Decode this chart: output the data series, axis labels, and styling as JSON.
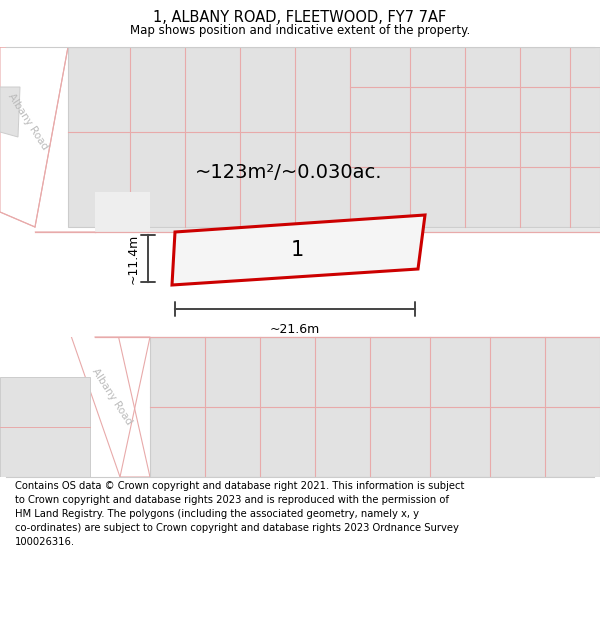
{
  "title": "1, ALBANY ROAD, FLEETWOOD, FY7 7AF",
  "subtitle": "Map shows position and indicative extent of the property.",
  "footer": "Contains OS data © Crown copyright and database right 2021. This information is subject\nto Crown copyright and database rights 2023 and is reproduced with the permission of\nHM Land Registry. The polygons (including the associated geometry, namely x, y\nco-ordinates) are subject to Crown copyright and database rights 2023 Ordnance Survey\n100026316.",
  "map_bg": "#eeeeee",
  "road_fill": "#ffffff",
  "road_edge": "#e8aaaa",
  "block_fill": "#e2e2e2",
  "block_edge": "#cccccc",
  "plot_edge": "#cc0000",
  "plot_fill": "#f5f5f5",
  "dim_color": "#444444",
  "road_label_color": "#bbbbbb",
  "area_text": "~123m²/~0.030ac.",
  "label_text": "1",
  "width_text": "~21.6m",
  "height_text": "~11.4m",
  "title_fontsize": 10.5,
  "subtitle_fontsize": 8.5,
  "footer_fontsize": 7.2,
  "area_fontsize": 14,
  "label_fontsize": 15,
  "dim_fontsize": 9
}
